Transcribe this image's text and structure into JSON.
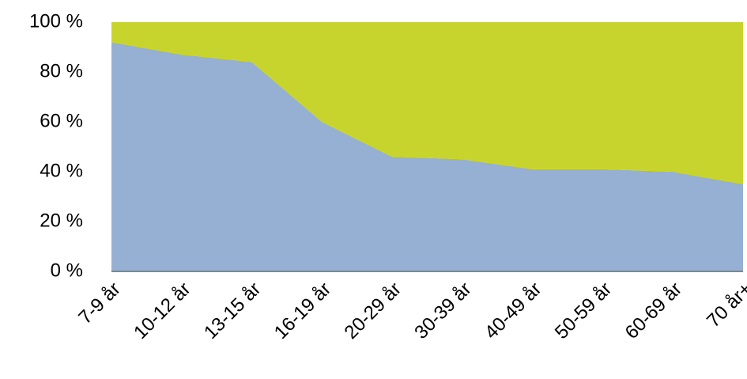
{
  "chart_data": {
    "type": "stacked_area",
    "categories": [
      "7-9 år",
      "10-12 år",
      "13-15 år",
      "16-19 år",
      "20-29 år",
      "30-39 år",
      "40-49 år",
      "50-59 år",
      "60-69 år",
      "70 år+"
    ],
    "series": [
      {
        "color": "#95b0d2",
        "values": [
          92,
          87,
          84,
          60,
          46,
          45,
          41,
          41,
          40,
          35
        ]
      },
      {
        "color": "#c8d42e",
        "values": [
          8,
          13,
          16,
          40,
          54,
          55,
          59,
          59,
          60,
          65
        ]
      }
    ],
    "ylim": [
      0,
      100
    ],
    "yticks": [
      {
        "value": 0,
        "label": "0 %"
      },
      {
        "value": 20,
        "label": "20 %"
      },
      {
        "value": 40,
        "label": "40 %"
      },
      {
        "value": 60,
        "label": "60 %"
      },
      {
        "value": 80,
        "label": "80 %"
      },
      {
        "value": 100,
        "label": "100 %"
      }
    ],
    "grid": false
  }
}
